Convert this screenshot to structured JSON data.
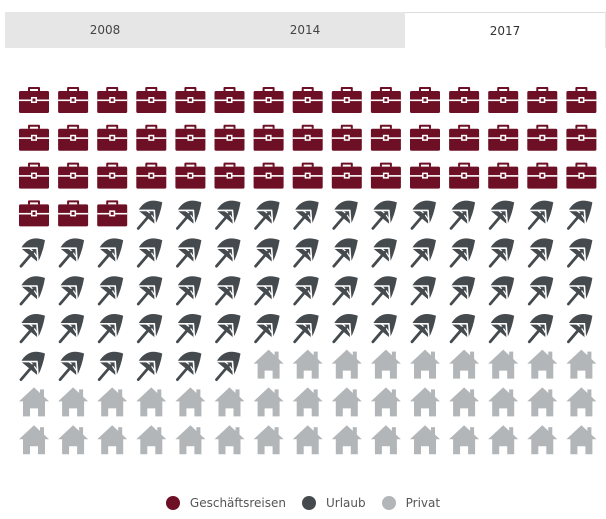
{
  "tabs": [
    {
      "label": "2008",
      "active": false
    },
    {
      "label": "2014",
      "active": false
    },
    {
      "label": "2017",
      "active": true
    }
  ],
  "chart_data": {
    "type": "pictogram",
    "total_icons": 150,
    "series": [
      {
        "name": "Geschäftsreisen",
        "count": 48,
        "icon": "briefcase-icon",
        "color": "#6e1025"
      },
      {
        "name": "Urlaub",
        "count": 63,
        "icon": "beach-umbrella-icon",
        "color": "#454a4e"
      },
      {
        "name": "Privat",
        "count": 39,
        "icon": "house-icon",
        "color": "#b2b6b8"
      }
    ],
    "legend_position": "bottom-center"
  }
}
